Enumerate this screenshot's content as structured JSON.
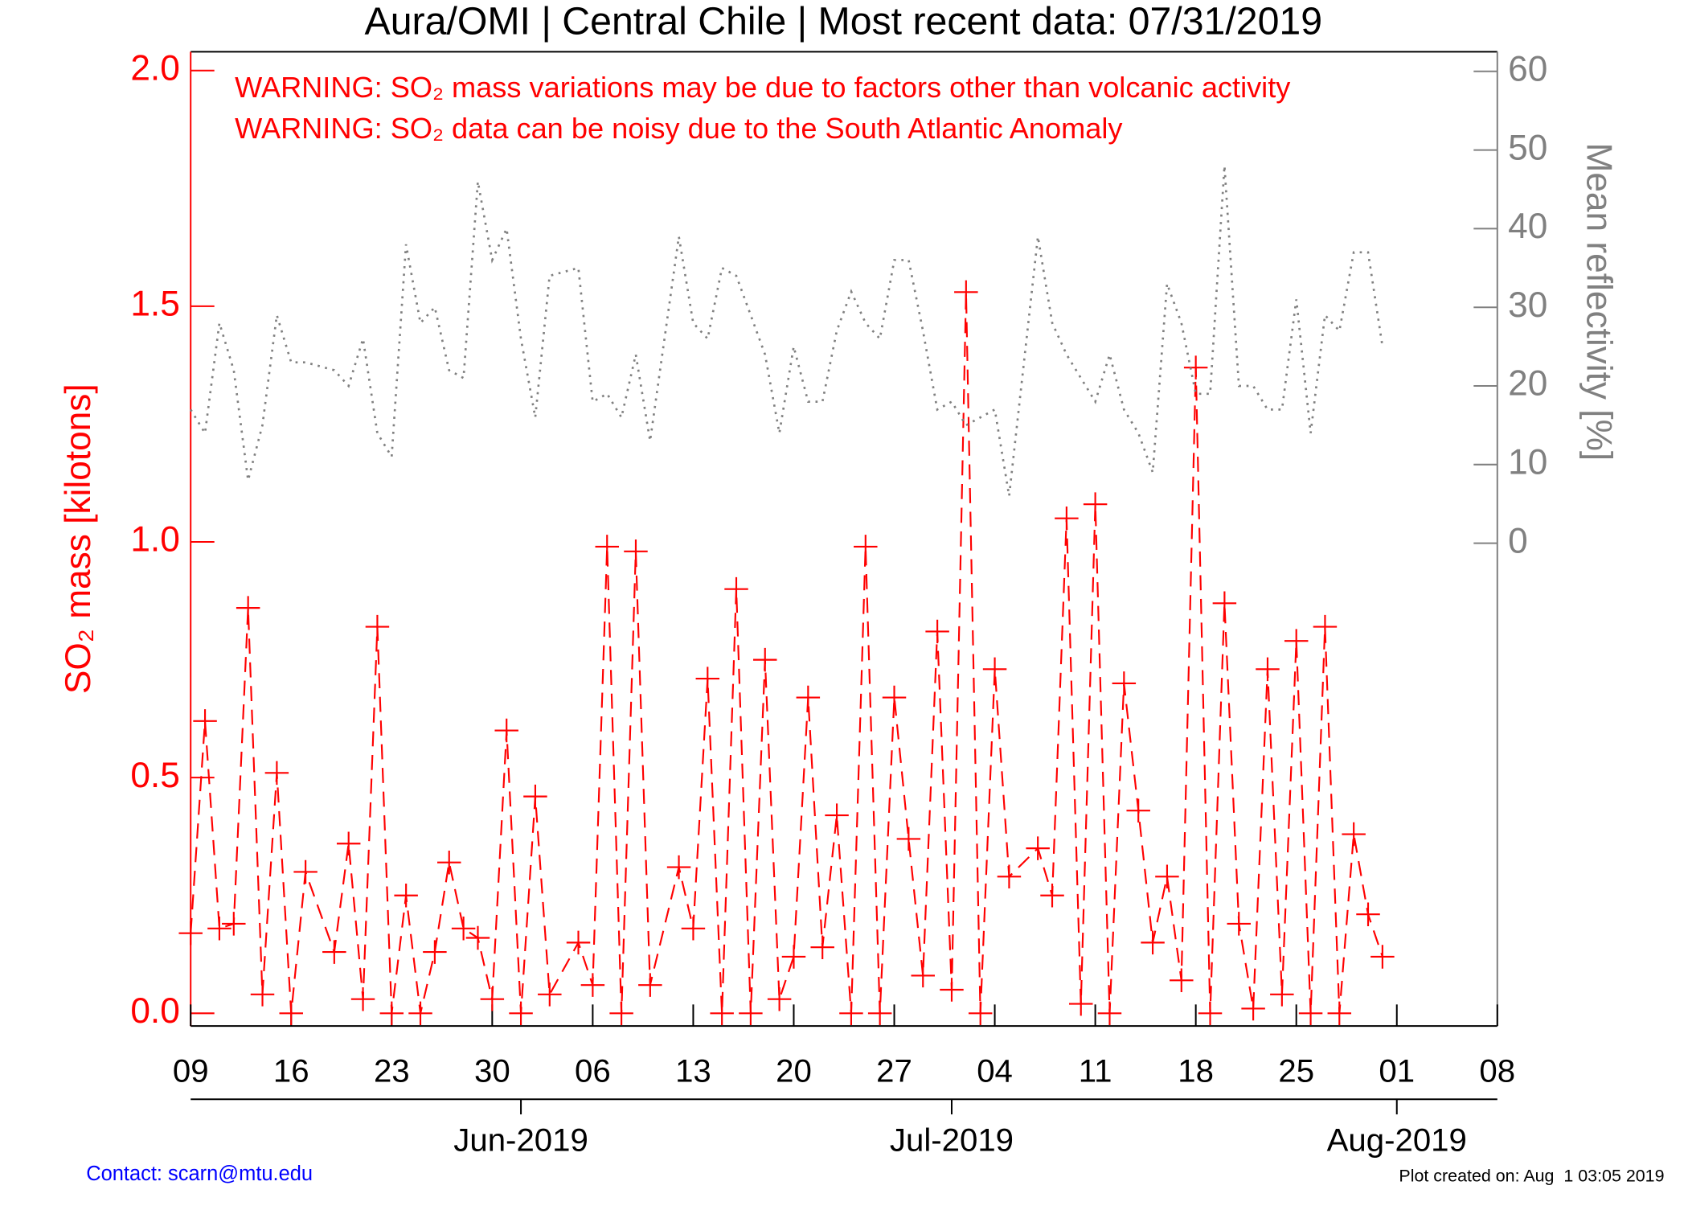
{
  "chart_data": {
    "type": "line",
    "title": "Aura/OMI | Central Chile | Most recent data: 07/31/2019",
    "annotations": [
      "WARNING: SO₂ mass variations may be due to factors other than volcanic activity",
      "WARNING: SO₂ data can be noisy due to the South Atlantic Anomaly"
    ],
    "ylabel": "SO₂ mass [kilotons]",
    "y2label": "Mean reflectivity [%]",
    "footer_left": "Contact: scarn@mtu.edu",
    "footer_right": "Plot created on: Aug  1 03:05 2019",
    "x": [
      "2019-05-09",
      "2019-05-10",
      "2019-05-11",
      "2019-05-12",
      "2019-05-13",
      "2019-05-14",
      "2019-05-15",
      "2019-05-16",
      "2019-05-17",
      "2019-05-19",
      "2019-05-20",
      "2019-05-21",
      "2019-05-22",
      "2019-05-23",
      "2019-05-24",
      "2019-05-25",
      "2019-05-26",
      "2019-05-27",
      "2019-05-28",
      "2019-05-29",
      "2019-05-30",
      "2019-05-31",
      "2019-06-01",
      "2019-06-02",
      "2019-06-03",
      "2019-06-05",
      "2019-06-06",
      "2019-06-07",
      "2019-06-08",
      "2019-06-09",
      "2019-06-10",
      "2019-06-12",
      "2019-06-13",
      "2019-06-14",
      "2019-06-15",
      "2019-06-16",
      "2019-06-17",
      "2019-06-18",
      "2019-06-19",
      "2019-06-20",
      "2019-06-21",
      "2019-06-22",
      "2019-06-23",
      "2019-06-24",
      "2019-06-25",
      "2019-06-26",
      "2019-06-27",
      "2019-06-28",
      "2019-06-29",
      "2019-06-30",
      "2019-07-01",
      "2019-07-02",
      "2019-07-03",
      "2019-07-04",
      "2019-07-05",
      "2019-07-07",
      "2019-07-08",
      "2019-07-09",
      "2019-07-10",
      "2019-07-11",
      "2019-07-12",
      "2019-07-13",
      "2019-07-14",
      "2019-07-15",
      "2019-07-16",
      "2019-07-17",
      "2019-07-18",
      "2019-07-19",
      "2019-07-20",
      "2019-07-21",
      "2019-07-22",
      "2019-07-23",
      "2019-07-24",
      "2019-07-25",
      "2019-07-26",
      "2019-07-27",
      "2019-07-28",
      "2019-07-29",
      "2019-07-30",
      "2019-07-31"
    ],
    "series": [
      {
        "color": "#ff0000",
        "line_style": "dashed",
        "marker": "+",
        "axis": "y",
        "values": [
          0.17,
          0.62,
          0.18,
          0.19,
          0.86,
          0.04,
          0.51,
          0,
          0.3,
          0.13,
          0.36,
          0.03,
          0.82,
          0,
          0.25,
          0,
          0.13,
          0.32,
          0.18,
          0.16,
          0.03,
          0.6,
          0,
          0.46,
          0.04,
          0.15,
          0.06,
          0.99,
          0,
          0.98,
          0.06,
          0.31,
          0.18,
          0.71,
          0,
          0.9,
          0,
          0.75,
          0.03,
          0.12,
          0.67,
          0.14,
          0.42,
          0,
          0.99,
          0,
          0.67,
          0.37,
          0.08,
          0.81,
          0.05,
          1.53,
          0,
          0.73,
          0.29,
          0.35,
          0.25,
          1.05,
          0.02,
          1.08,
          0,
          0.7,
          0.43,
          0.15,
          0.29,
          0.07,
          1.37,
          0,
          0.87,
          0.19,
          0.01,
          0.73,
          0.04,
          0.79,
          0,
          0.82,
          0,
          0.38,
          0.21,
          0.12
        ]
      },
      {
        "color": "#808080",
        "line_style": "dotted",
        "axis": "y2",
        "values": [
          17,
          14,
          28,
          22,
          8,
          15,
          29,
          23,
          23,
          22,
          20,
          26,
          14,
          11,
          38,
          28,
          30,
          22,
          21,
          46,
          36,
          40,
          26,
          16,
          34,
          35,
          18,
          19,
          16,
          24,
          13,
          39,
          28,
          26,
          35,
          34,
          29,
          24,
          14,
          25,
          18,
          18,
          27,
          32,
          28,
          26,
          36,
          36,
          27,
          17,
          18,
          15,
          16,
          17,
          6,
          39,
          28,
          24,
          21,
          18,
          24,
          17,
          14,
          9,
          33,
          28,
          19,
          19,
          48,
          20,
          20,
          17,
          17,
          31,
          14,
          29,
          27,
          37,
          37,
          25
        ]
      }
    ],
    "xlim": [
      "2019-05-09",
      "2019-08-08"
    ],
    "xticks": [
      {
        "value": "2019-05-09",
        "label": "09"
      },
      {
        "value": "2019-05-16",
        "label": "16"
      },
      {
        "value": "2019-05-23",
        "label": "23"
      },
      {
        "value": "2019-05-30",
        "label": "30"
      },
      {
        "value": "2019-06-06",
        "label": "06"
      },
      {
        "value": "2019-06-13",
        "label": "13"
      },
      {
        "value": "2019-06-20",
        "label": "20"
      },
      {
        "value": "2019-06-27",
        "label": "27"
      },
      {
        "value": "2019-07-04",
        "label": "04"
      },
      {
        "value": "2019-07-11",
        "label": "11"
      },
      {
        "value": "2019-07-18",
        "label": "18"
      },
      {
        "value": "2019-07-25",
        "label": "25"
      },
      {
        "value": "2019-08-01",
        "label": "01"
      },
      {
        "value": "2019-08-08",
        "label": "08"
      }
    ],
    "month_ticks": [
      {
        "value": "2019-06-01",
        "label": "Jun-2019"
      },
      {
        "value": "2019-07-01",
        "label": "Jul-2019"
      },
      {
        "value": "2019-08-01",
        "label": "Aug-2019"
      }
    ],
    "ylim": [
      -0.027,
      2.04
    ],
    "yticks": [
      {
        "value": 0,
        "label": "0.0"
      },
      0.5,
      {
        "value": 1,
        "label": "1.0"
      },
      1.5,
      {
        "value": 2,
        "label": "2.0"
      }
    ],
    "y2lim": [
      -61.4,
      62.5
    ],
    "y2ticks": [
      0,
      10,
      20,
      30,
      40,
      50,
      60
    ],
    "y_color": "#ff0000",
    "y2_color": "#808080"
  }
}
